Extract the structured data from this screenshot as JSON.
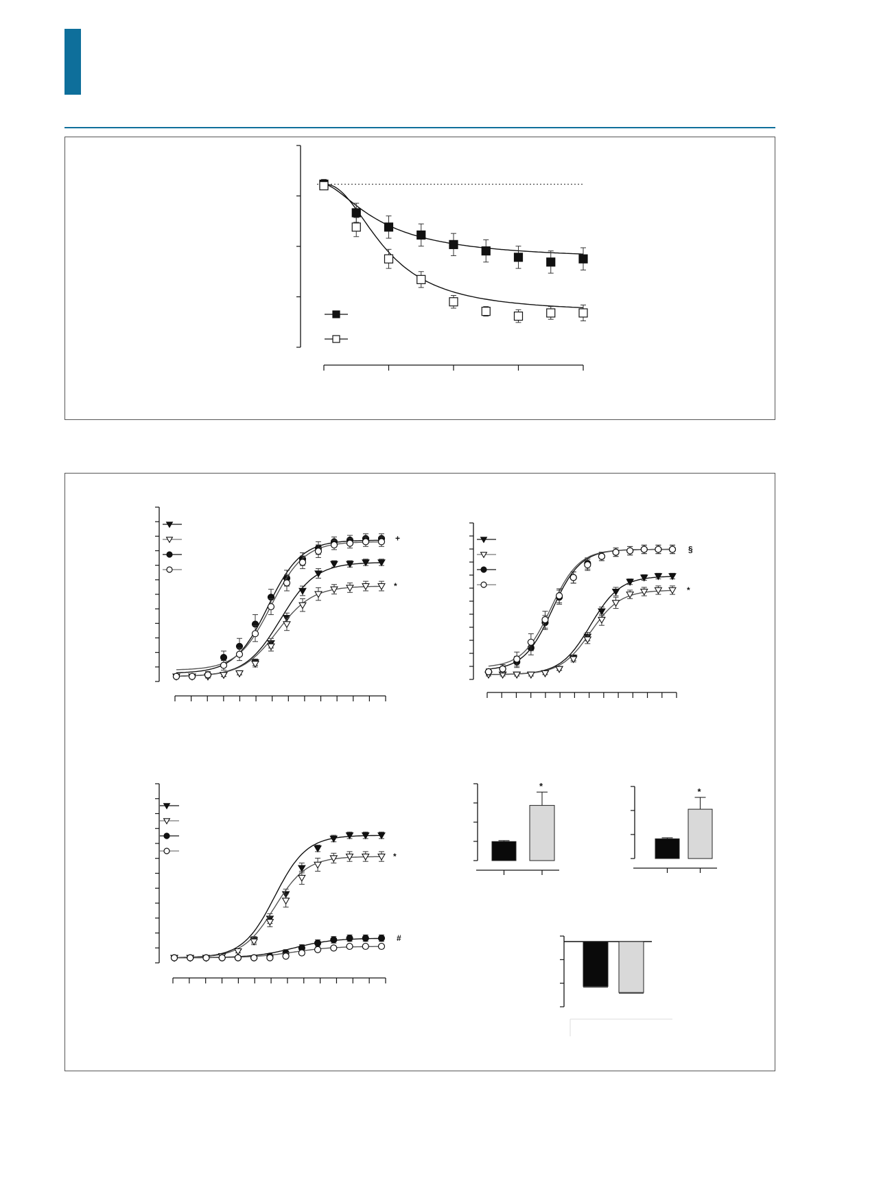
{
  "colors": {
    "accent": "#0e6f9b",
    "bar_dark": "#0a0a0a",
    "bar_light": "#d9d9d9"
  },
  "chart_data": [
    {
      "id": "A",
      "type": "line",
      "y_domain": [
        0,
        120
      ],
      "x_domain": [
        0,
        8
      ],
      "grid": false,
      "reference_line": 100,
      "series": [
        {
          "marker": "square-filled",
          "x": [
            0,
            1,
            2,
            3,
            4,
            5,
            6,
            7,
            8
          ],
          "y": [
            100,
            82,
            73,
            68,
            62,
            58,
            54,
            51,
            53
          ],
          "err": [
            3,
            6,
            7,
            7,
            7,
            7,
            7,
            7,
            7
          ],
          "fit": {
            "top": 100,
            "bottom": 52,
            "x50": 1.8,
            "hill": 1.6
          }
        },
        {
          "marker": "square-open",
          "x": [
            0,
            1,
            2,
            3,
            4,
            5,
            6,
            7,
            8
          ],
          "y": [
            99,
            73,
            53,
            40,
            26,
            20,
            17,
            19,
            19
          ],
          "err": [
            2,
            6,
            6,
            5,
            4,
            3,
            4,
            4,
            5
          ],
          "fit": {
            "top": 100,
            "bottom": 19,
            "x50": 1.9,
            "hill": 2.2
          }
        }
      ],
      "legend_markers": [
        "square-filled",
        "square-open"
      ]
    },
    {
      "id": "B1",
      "type": "line",
      "y_domain": [
        0,
        100
      ],
      "x_domain": [
        0,
        13
      ],
      "grid": false,
      "annotations": [
        "+",
        "*"
      ],
      "series": [
        {
          "marker": "triangle-filled",
          "y": [
            1,
            1,
            1,
            2,
            3,
            10,
            22,
            38,
            55,
            66,
            72,
            72,
            73,
            73
          ],
          "err": [
            1,
            1,
            1,
            1,
            1,
            2,
            3,
            3,
            3,
            3,
            2,
            2,
            2,
            2
          ],
          "fit": {
            "top": 73,
            "bottom": 1,
            "x50": 6.6,
            "hill": 0.9
          }
        },
        {
          "marker": "triangle-open",
          "y": [
            1,
            1,
            1,
            2,
            3,
            9,
            20,
            34,
            46,
            53,
            56,
            57,
            58,
            58
          ],
          "err": [
            1,
            1,
            1,
            1,
            1,
            2,
            3,
            4,
            4,
            4,
            3,
            3,
            3,
            3
          ],
          "fit": {
            "top": 58,
            "bottom": 1,
            "x50": 6.4,
            "hill": 0.9
          }
        },
        {
          "marker": "circle-filled",
          "y": [
            1,
            1,
            2,
            13,
            20,
            34,
            51,
            63,
            75,
            82,
            86,
            87,
            88,
            88
          ],
          "err": [
            1,
            1,
            2,
            4,
            5,
            6,
            5,
            5,
            4,
            4,
            3,
            3,
            3,
            3
          ],
          "fit": {
            "top": 87,
            "bottom": 3,
            "x50": 5.8,
            "hill": 0.95
          }
        },
        {
          "marker": "circle-open",
          "y": [
            1,
            1,
            2,
            8,
            15,
            28,
            45,
            60,
            73,
            80,
            84,
            85,
            86,
            86
          ],
          "err": [
            1,
            1,
            2,
            3,
            4,
            5,
            5,
            5,
            4,
            4,
            3,
            3,
            3,
            3
          ],
          "fit": {
            "top": 86,
            "bottom": 5,
            "x50": 6.0,
            "hill": 0.95
          }
        }
      ],
      "legend_markers": [
        "triangle-filled",
        "triangle-open",
        "circle-filled",
        "circle-open"
      ]
    },
    {
      "id": "B2",
      "type": "line",
      "y_domain": [
        0,
        100
      ],
      "x_domain": [
        0,
        13
      ],
      "grid": false,
      "annotations": [
        "§",
        "*"
      ],
      "series": [
        {
          "marker": "triangle-filled",
          "y": [
            1,
            1,
            1,
            1,
            2,
            5,
            13,
            28,
            46,
            60,
            67,
            70,
            71,
            71
          ],
          "err": [
            1,
            1,
            1,
            1,
            1,
            1,
            2,
            3,
            3,
            3,
            2,
            2,
            2,
            2
          ],
          "fit": {
            "top": 71,
            "bottom": 1,
            "x50": 7.2,
            "hill": 0.95
          }
        },
        {
          "marker": "triangle-open",
          "y": [
            1,
            1,
            1,
            1,
            2,
            5,
            12,
            26,
            40,
            52,
            58,
            60,
            61,
            61
          ],
          "err": [
            1,
            1,
            1,
            1,
            1,
            1,
            2,
            3,
            4,
            4,
            3,
            3,
            3,
            3
          ],
          "fit": {
            "top": 61,
            "bottom": 1,
            "x50": 7.2,
            "hill": 0.95
          }
        },
        {
          "marker": "circle-filled",
          "y": [
            3,
            5,
            10,
            20,
            38,
            56,
            70,
            80,
            85,
            88,
            89,
            90,
            90,
            90
          ],
          "err": [
            2,
            3,
            4,
            5,
            5,
            5,
            4,
            4,
            3,
            3,
            3,
            3,
            3,
            3
          ],
          "fit": {
            "top": 90,
            "bottom": 4,
            "x50": 4.5,
            "hill": 1.0
          }
        },
        {
          "marker": "circle-open",
          "y": [
            3,
            5,
            12,
            24,
            40,
            57,
            70,
            79,
            85,
            88,
            89,
            90,
            90,
            90
          ],
          "err": [
            2,
            3,
            5,
            6,
            6,
            5,
            4,
            4,
            3,
            3,
            3,
            3,
            3,
            3
          ],
          "fit": {
            "top": 90,
            "bottom": 6,
            "x50": 4.4,
            "hill": 1.0
          }
        }
      ],
      "legend_markers": [
        "triangle-filled",
        "triangle-open",
        "circle-filled",
        "circle-open"
      ]
    },
    {
      "id": "B3",
      "type": "line",
      "y_domain": [
        0,
        100
      ],
      "x_domain": [
        0,
        13
      ],
      "grid": false,
      "annotations": [
        "*",
        "#"
      ],
      "series": [
        {
          "marker": "triangle-filled",
          "y": [
            1,
            1,
            1,
            2,
            5,
            12,
            25,
            40,
            56,
            68,
            74,
            76,
            76,
            76
          ],
          "err": [
            1,
            1,
            1,
            1,
            1,
            2,
            3,
            3,
            3,
            2,
            2,
            2,
            2,
            2
          ],
          "fit": {
            "top": 76,
            "bottom": 1,
            "x50": 6.3,
            "hill": 1.0
          }
        },
        {
          "marker": "triangle-open",
          "y": [
            1,
            1,
            1,
            2,
            5,
            11,
            23,
            36,
            50,
            58,
            62,
            63,
            63,
            63
          ],
          "err": [
            1,
            1,
            1,
            1,
            1,
            2,
            3,
            4,
            4,
            4,
            3,
            3,
            3,
            3
          ],
          "fit": {
            "top": 63,
            "bottom": 1,
            "x50": 6.3,
            "hill": 1.0
          }
        },
        {
          "marker": "circle-filled",
          "y": [
            1,
            1,
            1,
            1,
            1,
            1,
            2,
            4,
            7,
            10,
            12,
            13,
            13,
            13
          ],
          "err": [
            1,
            1,
            1,
            1,
            1,
            1,
            1,
            2,
            2,
            2,
            2,
            2,
            2,
            2
          ],
          "fit": {
            "top": 13,
            "bottom": 1,
            "x50": 7.5,
            "hill": 0.8
          }
        },
        {
          "marker": "circle-open",
          "y": [
            1,
            1,
            1,
            1,
            1,
            1,
            1,
            2,
            4,
            6,
            7,
            8,
            8,
            8
          ],
          "err": [
            1,
            1,
            1,
            1,
            1,
            1,
            1,
            1,
            1,
            1,
            1,
            1,
            1,
            1
          ],
          "fit": {
            "top": 8,
            "bottom": 1,
            "x50": 7.5,
            "hill": 0.8
          }
        }
      ],
      "legend_markers": [
        "triangle-filled",
        "triangle-open",
        "circle-filled",
        "circle-open"
      ]
    },
    {
      "id": "C1",
      "type": "bar",
      "y_domain": [
        0,
        4.4
      ],
      "values": [
        1.0,
        2.9
      ],
      "err": [
        0.05,
        0.7
      ],
      "significance": "*"
    },
    {
      "id": "C2",
      "type": "bar",
      "y_domain": [
        0,
        4.0
      ],
      "values": [
        1.0,
        2.5
      ],
      "err": [
        0.05,
        0.6
      ],
      "significance": "*"
    },
    {
      "id": "C3",
      "type": "bar",
      "y_domain": [
        -1.6,
        0.3
      ],
      "values": [
        -1.1,
        -1.25
      ],
      "err": [
        0.02,
        0.02
      ]
    }
  ]
}
